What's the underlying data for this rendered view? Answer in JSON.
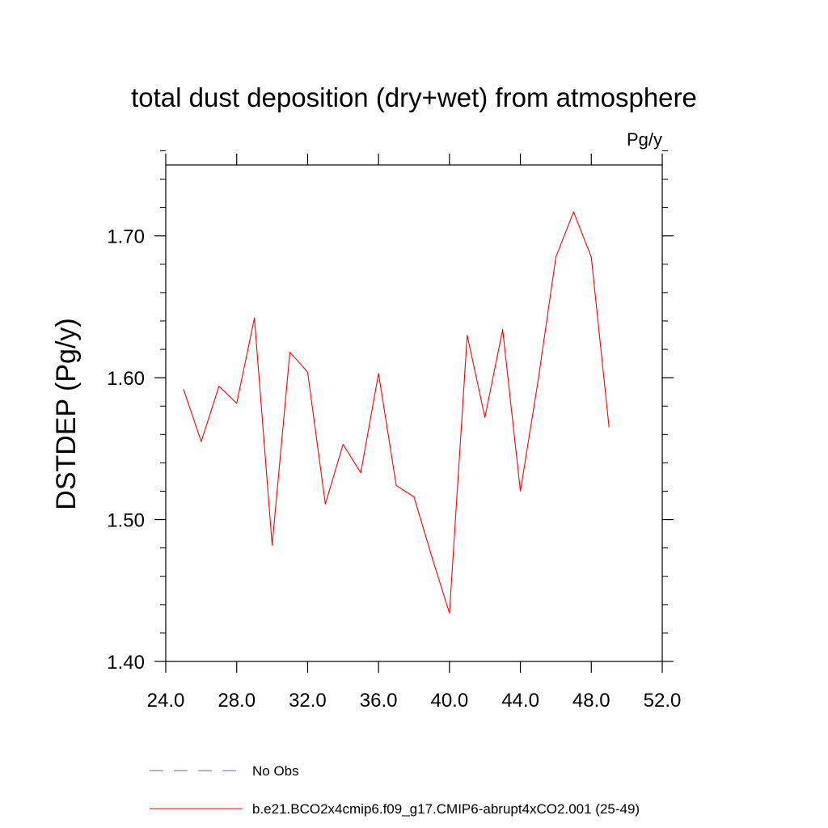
{
  "chart_data": {
    "type": "line",
    "title": "total dust deposition (dry+wet) from atmosphere",
    "units_label": "Pg/y",
    "ylabel": "DSTDEP  (Pg/y)",
    "xlabel": "",
    "xlim": [
      24,
      52
    ],
    "ylim": [
      1.4,
      1.75
    ],
    "x_ticks": [
      24,
      28,
      32,
      36,
      40,
      44,
      48,
      52
    ],
    "x_tick_labels": [
      "24.0",
      "28.0",
      "32.0",
      "36.0",
      "40.0",
      "44.0",
      "48.0",
      "52.0"
    ],
    "y_ticks": [
      1.4,
      1.5,
      1.6,
      1.7
    ],
    "y_tick_labels": [
      "1.40",
      "1.50",
      "1.60",
      "1.70"
    ],
    "grid": false,
    "legend_position": "bottom",
    "legend": [
      {
        "label": "No Obs",
        "color": "#6b5fb5",
        "style": "dashed"
      },
      {
        "label": "b.e21.BCO2x4cmip6.f09_g17.CMIP6-abrupt4xCO2.001 (25-49)",
        "color": "#ff0000",
        "style": "solid"
      }
    ],
    "series": [
      {
        "name": "b.e21.BCO2x4cmip6.f09_g17.CMIP6-abrupt4xCO2.001 (25-49)",
        "color": "#ff0000",
        "x": [
          25,
          26,
          27,
          28,
          29,
          30,
          31,
          32,
          33,
          34,
          35,
          36,
          37,
          38,
          39,
          40,
          41,
          42,
          43,
          44,
          45,
          46,
          47,
          48,
          49
        ],
        "y": [
          1.592,
          1.555,
          1.594,
          1.582,
          1.642,
          1.482,
          1.618,
          1.604,
          1.511,
          1.553,
          1.533,
          1.603,
          1.524,
          1.516,
          1.474,
          1.434,
          1.63,
          1.572,
          1.634,
          1.52,
          1.598,
          1.685,
          1.717,
          1.685,
          1.565
        ]
      }
    ]
  }
}
